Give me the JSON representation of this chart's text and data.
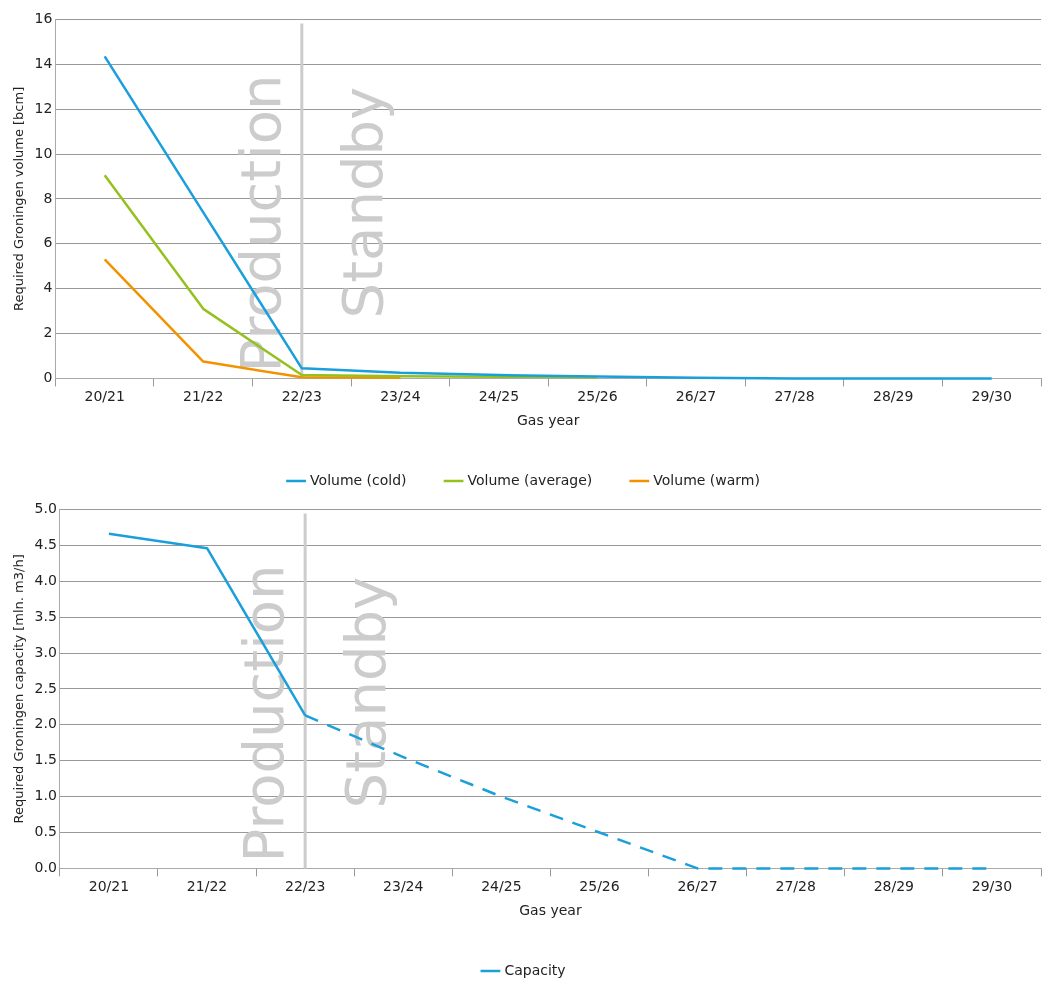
{
  "chart_data": [
    {
      "type": "line",
      "ylabel": "Required Groningen volume [bcm]",
      "xlabel": "Gas year",
      "categories": [
        "20/21",
        "21/22",
        "22/23",
        "23/24",
        "24/25",
        "25/26",
        "26/27",
        "27/28",
        "28/29",
        "29/30"
      ],
      "series": [
        {
          "name": "Volume (cold)",
          "color": "#1a9fdb",
          "values": [
            14.35,
            7.4,
            0.45,
            0.25,
            0.15,
            0.08,
            0.03,
            0,
            0,
            0
          ]
        },
        {
          "name": "Volume (average)",
          "color": "#95c11f",
          "values": [
            9.05,
            3.1,
            0.15,
            0.1,
            0.07,
            0.05,
            null,
            null,
            null,
            null
          ]
        },
        {
          "name": "Volume (warm)",
          "color": "#f39200",
          "values": [
            5.3,
            0.75,
            0.05,
            0.03,
            null,
            null,
            null,
            null,
            null,
            null
          ]
        }
      ],
      "ylim": [
        0,
        16
      ],
      "yticks": [
        0,
        2,
        4,
        6,
        8,
        10,
        12,
        14,
        16
      ],
      "grid": "y",
      "legend": "bottom",
      "marker": "none",
      "line_style": "solid",
      "ref_lines": [
        {
          "axis": "x",
          "value": "22/23",
          "color": "#cccccc"
        }
      ],
      "annotations": [
        "Production",
        "Standby"
      ]
    },
    {
      "type": "line",
      "ylabel": "Required Groningen capacity [mln. m3/h]",
      "xlabel": "Gas year",
      "categories": [
        "20/21",
        "21/22",
        "22/23",
        "23/24",
        "24/25",
        "25/26",
        "26/27",
        "27/28",
        "28/29",
        "29/30"
      ],
      "series": [
        {
          "name": "Capacity",
          "color": "#1a9fdb",
          "line_style": "solid",
          "values": [
            4.66,
            4.46,
            2.13,
            null,
            null,
            null,
            null,
            null,
            null,
            null
          ]
        },
        {
          "color": "#1a9fdb",
          "line_style": "dashed",
          "values": [
            null,
            null,
            2.13,
            1.55,
            1.0,
            0.5,
            0,
            0,
            0,
            0
          ]
        }
      ],
      "ylim": [
        0,
        5
      ],
      "yticks": [
        {
          "value": 0,
          "label": "0.0"
        },
        {
          "value": 0.5,
          "label": "0.5"
        },
        {
          "value": 1,
          "label": "1.0"
        },
        {
          "value": 1.5,
          "label": "1.5"
        },
        {
          "value": 2,
          "label": "2.0"
        },
        {
          "value": 2.5,
          "label": "2.5"
        },
        {
          "value": 3,
          "label": "3.0"
        },
        {
          "value": 3.5,
          "label": "3.5"
        },
        {
          "value": 4,
          "label": "4.0"
        },
        {
          "value": 4.5,
          "label": "4.5"
        },
        {
          "value": 5,
          "label": "5.0"
        }
      ],
      "grid": "y",
      "legend": "bottom",
      "marker": "none",
      "ref_lines": [
        {
          "axis": "x",
          "value": "22/23",
          "color": "#cccccc"
        }
      ],
      "annotations": [
        "Production",
        "Standby"
      ]
    }
  ]
}
